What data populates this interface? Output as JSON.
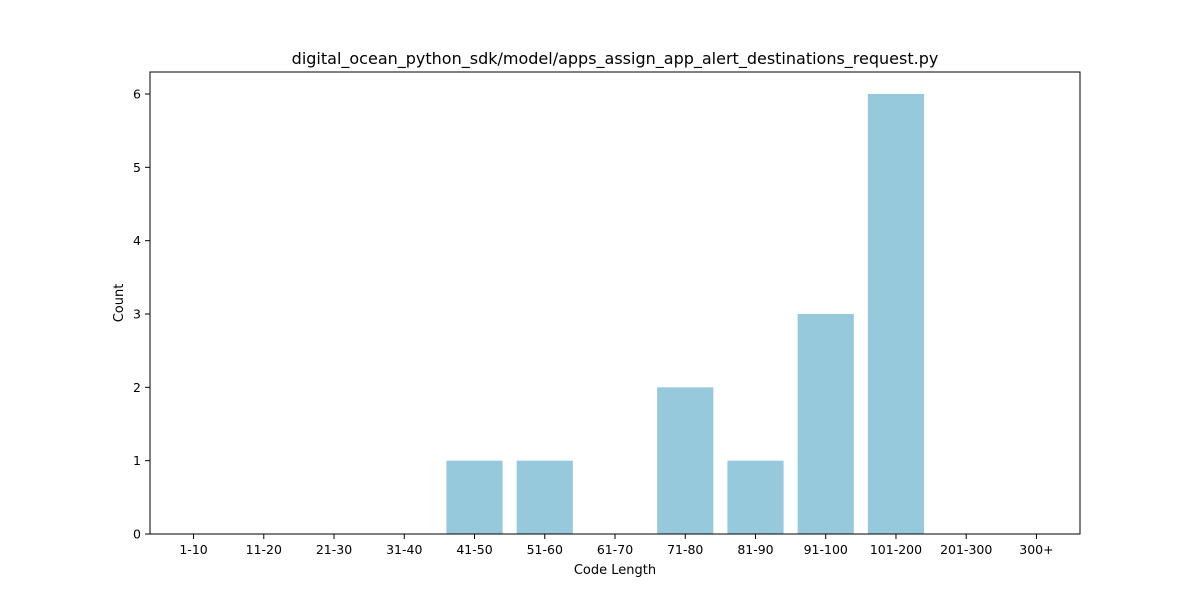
{
  "chart_data": {
    "type": "bar",
    "title": "digital_ocean_python_sdk/model/apps_assign_app_alert_destinations_request.py",
    "xlabel": "Code Length",
    "ylabel": "Count",
    "categories": [
      "1-10",
      "11-20",
      "21-30",
      "31-40",
      "41-50",
      "51-60",
      "61-70",
      "71-80",
      "81-90",
      "91-100",
      "101-200",
      "201-300",
      "300+"
    ],
    "values": [
      0,
      0,
      0,
      0,
      1,
      1,
      0,
      2,
      1,
      3,
      6,
      0,
      0
    ],
    "ylim": [
      0,
      6.3
    ],
    "yticks": [
      0,
      1,
      2,
      3,
      4,
      5,
      6
    ],
    "grid": false,
    "legend": "none",
    "bar_color": "#96c9dc"
  }
}
